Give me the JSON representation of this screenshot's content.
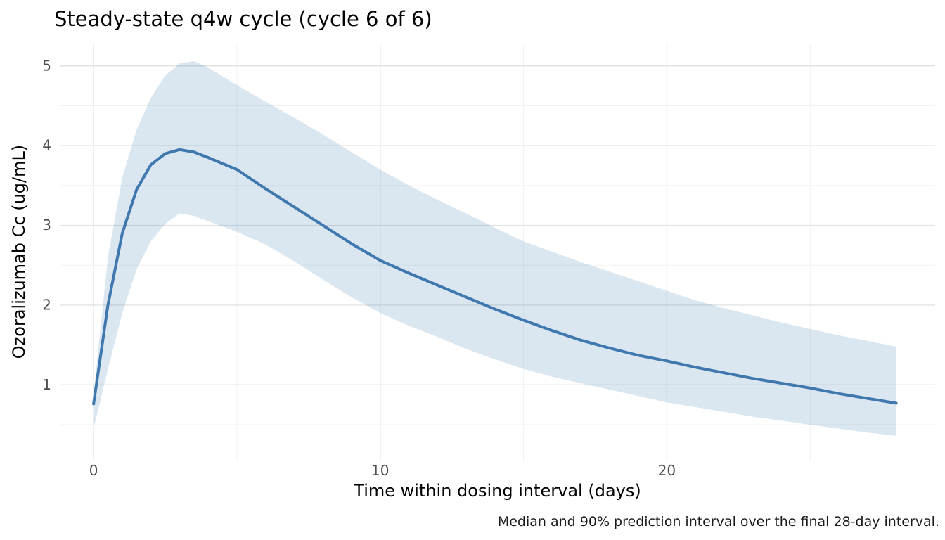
{
  "chart_data": {
    "type": "line",
    "title": "Steady-state q4w cycle (cycle 6 of 6)",
    "xlabel": "Time within dosing interval (days)",
    "ylabel": "Ozoralizumab Cc (ug/mL)",
    "caption": "Median and 90% prediction interval over the final 28-day interval.",
    "x": [
      0,
      0.5,
      1,
      1.5,
      2,
      2.5,
      3,
      3.5,
      4,
      5,
      6,
      7,
      8,
      9,
      10,
      11,
      12,
      13,
      14,
      15,
      16,
      17,
      18,
      19,
      20,
      21,
      22,
      23,
      24,
      25,
      26,
      27,
      28
    ],
    "series": [
      {
        "name": "median",
        "values": [
          0.76,
          2.0,
          2.9,
          3.45,
          3.76,
          3.9,
          3.95,
          3.92,
          3.85,
          3.7,
          3.46,
          3.23,
          3.0,
          2.77,
          2.56,
          2.4,
          2.25,
          2.1,
          1.95,
          1.81,
          1.68,
          1.56,
          1.46,
          1.37,
          1.3,
          1.22,
          1.15,
          1.08,
          1.02,
          0.96,
          0.89,
          0.83,
          0.77
        ]
      },
      {
        "name": "pi90_upper",
        "values": [
          0.88,
          2.6,
          3.6,
          4.2,
          4.6,
          4.88,
          5.03,
          5.06,
          4.98,
          4.76,
          4.55,
          4.35,
          4.14,
          3.92,
          3.7,
          3.5,
          3.32,
          3.15,
          2.97,
          2.8,
          2.67,
          2.54,
          2.42,
          2.3,
          2.18,
          2.06,
          1.96,
          1.87,
          1.78,
          1.7,
          1.62,
          1.55,
          1.48
        ]
      },
      {
        "name": "pi90_lower",
        "values": [
          0.45,
          1.2,
          1.9,
          2.45,
          2.8,
          3.02,
          3.15,
          3.12,
          3.05,
          2.92,
          2.76,
          2.55,
          2.32,
          2.1,
          1.9,
          1.74,
          1.6,
          1.45,
          1.32,
          1.2,
          1.1,
          1.02,
          0.94,
          0.86,
          0.78,
          0.72,
          0.66,
          0.6,
          0.55,
          0.5,
          0.45,
          0.4,
          0.36
        ]
      }
    ],
    "band": {
      "upper_series": "pi90_upper",
      "lower_series": "pi90_lower",
      "label": "90% prediction interval"
    },
    "x_ticks": {
      "major": [
        0,
        10,
        20
      ],
      "labels": [
        "0",
        "10",
        "20"
      ],
      "minor": [
        5,
        15,
        25
      ]
    },
    "y_ticks": {
      "major": [
        1,
        2,
        3,
        4,
        5
      ],
      "labels": [
        "1",
        "2",
        "3",
        "4",
        "5"
      ],
      "minor": [
        0.5,
        1.5,
        2.5,
        3.5,
        4.5
      ]
    },
    "xlim": [
      -1.18,
      29.36
    ],
    "ylim": [
      0.05,
      5.28
    ],
    "grid": true,
    "legend": "none",
    "colors": {
      "median_line": "#3f77af",
      "band_fill": "#4682b4",
      "band_opacity": 0.2,
      "grid_major": "#e3e3e3",
      "grid_minor": "#f1f1f1",
      "tick_text": "#4d4d4d",
      "text": "#000000",
      "background": "#ffffff"
    }
  }
}
